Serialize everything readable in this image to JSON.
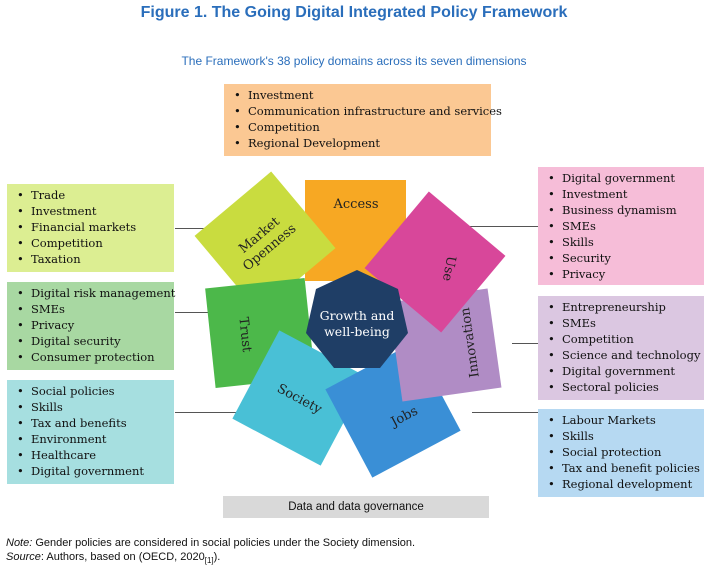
{
  "figure_title": "Figure 1. The Going Digital Integrated Policy Framework",
  "subtitle": "The Framework's 38 policy domains across its seven dimensions",
  "center_label": [
    "Growth and",
    "well-being"
  ],
  "dimensions": {
    "access": "Access",
    "use": "Use",
    "innovation": "Innovation",
    "jobs": "Jobs",
    "society": "Society",
    "trust": "Trust",
    "market_openness": [
      "Market",
      "Openness"
    ]
  },
  "colors": {
    "access": "#f7a823",
    "use": "#d8479a",
    "innovation": "#b08cc5",
    "jobs": "#3a8fd6",
    "society": "#49c0d6",
    "trust": "#4cb84a",
    "market_openness": "#c9dc3f",
    "center": "#1f3e66"
  },
  "boxes": {
    "access": [
      "Investment",
      "Communication infrastructure and services",
      "Competition",
      "Regional Development"
    ],
    "market_openness": [
      "Trade",
      "Investment",
      "Financial markets",
      "Competition",
      "Taxation"
    ],
    "trust": [
      "Digital risk management",
      "SMEs",
      "Privacy",
      "Digital security",
      "Consumer protection"
    ],
    "society": [
      "Social policies",
      "Skills",
      "Tax and benefits",
      "Environment",
      "Healthcare",
      "Digital government"
    ],
    "use": [
      "Digital government",
      "Investment",
      "Business dynamism",
      "SMEs",
      "Skills",
      "Security",
      "Privacy"
    ],
    "innovation": [
      "Entrepreneurship",
      "SMEs",
      "Competition",
      "Science and technology",
      "Digital government",
      "Sectoral policies"
    ],
    "jobs": [
      "Labour Markets",
      "Skills",
      "Social protection",
      "Tax and benefit policies",
      "Regional development"
    ]
  },
  "footer_bar": "Data and data governance",
  "note": {
    "note_label": "Note:",
    "note_text": " Gender policies are considered in social policies under the Society dimension.",
    "source_label": "Source",
    "source_text": ": Authors, based on (OECD, 2020",
    "source_ref": "[1]",
    "source_end": ")."
  }
}
